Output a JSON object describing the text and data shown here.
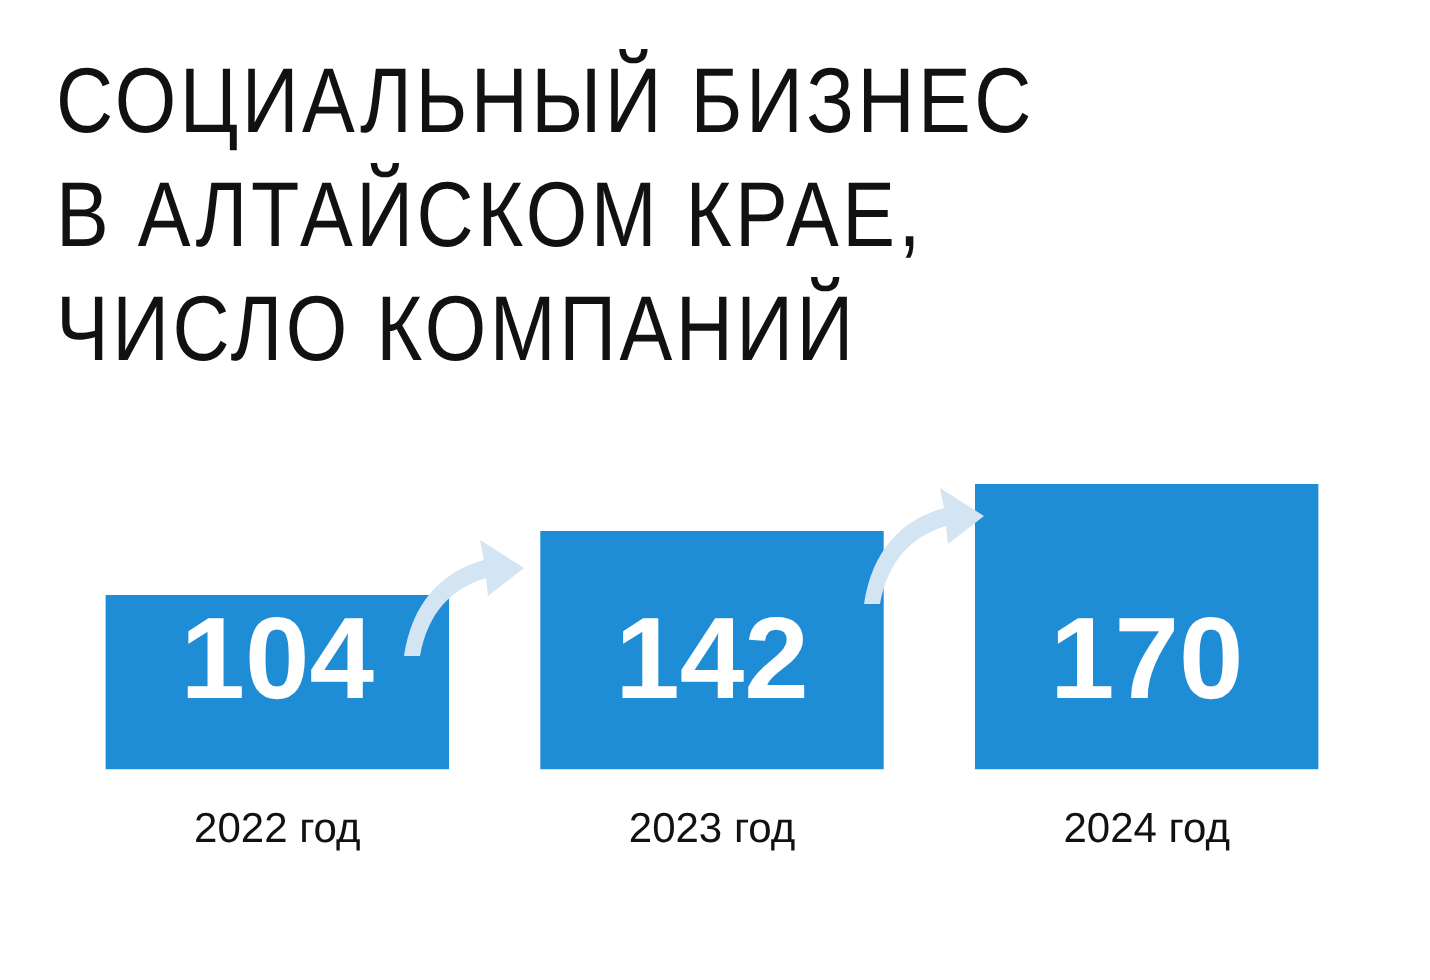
{
  "chart_data": {
    "type": "bar",
    "title": "СОЦИАЛЬНЫЙ БИЗНЕС\nВ АЛТАЙСКОМ КРАЕ,\nЧИСЛО КОМПАНИЙ",
    "categories": [
      "2022 год",
      "2023 год",
      "2024 год"
    ],
    "values": [
      104,
      142,
      170
    ],
    "color": "#1f8dd6",
    "ylim": [
      0,
      170
    ],
    "data_labels": true,
    "grid": false,
    "legend": false
  }
}
